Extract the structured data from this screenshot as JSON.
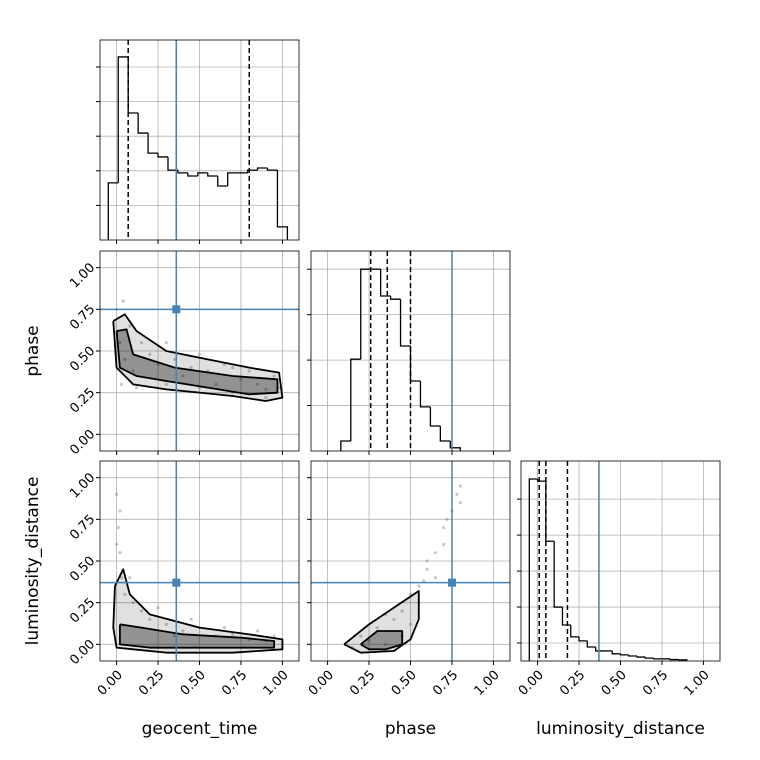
{
  "chart_data": {
    "type": "corner",
    "parameters": [
      "geocent_time",
      "phase",
      "luminosity_distance"
    ],
    "xlim": [
      -0.1,
      1.1
    ],
    "xticks": [
      {
        "value": 0,
        "label": "0.00"
      },
      {
        "value": 0.25,
        "label": "0.25"
      },
      {
        "value": 0.5,
        "label": "0.50"
      },
      {
        "value": 0.75,
        "label": "0.75"
      },
      {
        "value": 1,
        "label": "1.00"
      }
    ],
    "grid": true,
    "truths": [
      0.36,
      0.75,
      0.37
    ],
    "truth_color": "#4682b4",
    "hist_color": "#000000",
    "contour_color": "#000000",
    "point_color": "#808080",
    "histograms": [
      {
        "bins": [
          -0.05,
          0.01,
          0.07,
          0.13,
          0.19,
          0.25,
          0.31,
          0.37,
          0.43,
          0.49,
          0.55,
          0.61,
          0.67,
          0.73,
          0.79,
          0.85,
          0.91,
          0.97,
          1.03
        ],
        "counts": [
          1.65,
          5.29,
          3.67,
          3.09,
          2.51,
          2.4,
          2.02,
          1.94,
          1.85,
          1.94,
          1.85,
          1.56,
          1.94,
          1.94,
          2.02,
          2.08,
          2.02,
          0.38
        ],
        "ylim": [
          0,
          5.78
        ],
        "yticks": [
          1,
          2,
          3,
          4,
          5
        ],
        "quantiles": [
          0.07,
          0.36,
          0.8
        ]
      },
      {
        "bins": [
          0.08,
          0.14,
          0.2,
          0.26,
          0.32,
          0.38,
          0.44,
          0.5,
          0.56,
          0.62,
          0.68,
          0.74,
          0.8
        ],
        "counts": [
          0.22,
          2.02,
          4.0,
          4.0,
          3.41,
          3.34,
          2.31,
          1.54,
          0.97,
          0.55,
          0.22,
          0.07
        ],
        "ylim": [
          0,
          4.4
        ],
        "yticks": [
          1,
          2,
          3,
          4
        ],
        "quantiles": [
          0.26,
          0.36,
          0.5
        ]
      },
      {
        "bins": [
          -0.05,
          0.0,
          0.05,
          0.1,
          0.15,
          0.2,
          0.25,
          0.3,
          0.35,
          0.4,
          0.45,
          0.5,
          0.55,
          0.6,
          0.65,
          0.7,
          0.75,
          0.8,
          0.85,
          0.9
        ],
        "counts": [
          5.06,
          5.0,
          3.33,
          1.5,
          1.0,
          0.67,
          0.56,
          0.39,
          0.28,
          0.28,
          0.2,
          0.17,
          0.14,
          0.11,
          0.08,
          0.06,
          0.06,
          0.04,
          0.03
        ],
        "ylim": [
          0,
          5.56
        ],
        "yticks": [
          0.5,
          1.5,
          2.5,
          3.5,
          4.5
        ],
        "quantiles": [
          0.01,
          0.05,
          0.18
        ]
      }
    ],
    "pairs": [
      {
        "points": {
          "x": [
            0.0,
            0.02,
            0.05,
            0.03,
            0.08,
            0.1,
            0.15,
            0.2,
            0.25,
            0.3,
            0.35,
            0.4,
            0.45,
            0.5,
            0.55,
            0.6,
            0.65,
            0.7,
            0.75,
            0.8,
            0.85,
            0.9,
            0.95,
            0.98,
            0.12,
            0.3,
            0.5,
            0.7,
            0.9,
            0.04
          ],
          "y": [
            0.75,
            0.55,
            0.45,
            0.3,
            0.65,
            0.38,
            0.55,
            0.48,
            0.42,
            0.3,
            0.45,
            0.35,
            0.4,
            0.28,
            0.38,
            0.3,
            0.42,
            0.25,
            0.33,
            0.38,
            0.3,
            0.22,
            0.35,
            0.28,
            0.28,
            0.55,
            0.48,
            0.4,
            0.27,
            0.8
          ]
        },
        "contours": [
          {
            "x": [
              -0.02,
              0.05,
              0.12,
              0.3,
              0.55,
              0.8,
              0.98,
              1.0,
              0.9,
              0.7,
              0.5,
              0.3,
              0.1,
              0.0,
              -0.02
            ],
            "y": [
              0.68,
              0.72,
              0.62,
              0.5,
              0.45,
              0.4,
              0.37,
              0.22,
              0.2,
              0.23,
              0.25,
              0.27,
              0.3,
              0.4,
              0.68
            ]
          },
          {
            "x": [
              0.0,
              0.06,
              0.1,
              0.35,
              0.7,
              0.97,
              0.97,
              0.8,
              0.55,
              0.3,
              0.12,
              0.02,
              0.0
            ],
            "y": [
              0.62,
              0.63,
              0.48,
              0.4,
              0.35,
              0.33,
              0.25,
              0.24,
              0.28,
              0.32,
              0.35,
              0.4,
              0.62
            ]
          }
        ]
      },
      {
        "points": {
          "x": [
            0.0,
            0.01,
            0.02,
            0.03,
            0.0,
            0.05,
            0.1,
            0.15,
            0.2,
            0.3,
            0.4,
            0.5,
            0.6,
            0.7,
            0.8,
            0.9,
            0.95,
            1.0,
            0.02,
            0.25,
            0.45,
            0.65,
            0.85,
            0.08,
            0.35
          ],
          "y": [
            0.9,
            0.7,
            0.55,
            0.4,
            0.6,
            0.3,
            0.25,
            0.2,
            0.15,
            0.12,
            0.08,
            0.1,
            0.05,
            0.06,
            0.03,
            0.02,
            0.05,
            0.0,
            0.8,
            0.22,
            0.15,
            0.1,
            0.08,
            0.4,
            0.05
          ]
        },
        "contours": [
          {
            "x": [
              -0.01,
              0.04,
              0.08,
              0.2,
              0.5,
              0.8,
              1.0,
              1.0,
              0.7,
              0.3,
              0.0,
              -0.02,
              -0.01
            ],
            "y": [
              0.35,
              0.45,
              0.3,
              0.18,
              0.1,
              0.06,
              0.03,
              -0.03,
              -0.05,
              -0.05,
              -0.02,
              0.1,
              0.35
            ]
          },
          {
            "x": [
              0.02,
              0.15,
              0.4,
              0.75,
              0.95,
              0.95,
              0.6,
              0.2,
              0.02,
              0.02
            ],
            "y": [
              0.12,
              0.1,
              0.06,
              0.04,
              0.02,
              -0.02,
              -0.02,
              -0.02,
              0.0,
              0.12
            ]
          }
        ]
      },
      {
        "points": {
          "x": [
            0.15,
            0.2,
            0.3,
            0.35,
            0.4,
            0.45,
            0.5,
            0.55,
            0.6,
            0.65,
            0.7,
            0.75,
            0.78,
            0.8,
            0.55,
            0.5,
            0.45,
            0.6,
            0.7,
            0.65,
            0.25,
            0.35,
            0.58,
            0.72,
            0.8
          ],
          "y": [
            -0.02,
            0.05,
            0.1,
            0.0,
            0.15,
            0.2,
            0.3,
            0.35,
            0.45,
            0.55,
            0.7,
            0.8,
            0.9,
            0.95,
            0.25,
            0.12,
            0.05,
            0.5,
            0.6,
            0.4,
            0.02,
            0.18,
            0.38,
            0.75,
            0.85
          ]
        },
        "contours": [
          {
            "x": [
              0.1,
              0.25,
              0.4,
              0.55,
              0.55,
              0.5,
              0.4,
              0.2,
              0.1
            ],
            "y": [
              0.0,
              0.12,
              0.22,
              0.32,
              0.15,
              0.03,
              -0.04,
              -0.05,
              0.0
            ]
          },
          {
            "x": [
              0.2,
              0.3,
              0.45,
              0.45,
              0.35,
              0.25,
              0.2
            ],
            "y": [
              0.0,
              0.08,
              0.08,
              0.0,
              -0.03,
              -0.03,
              0.0
            ]
          }
        ]
      }
    ]
  }
}
